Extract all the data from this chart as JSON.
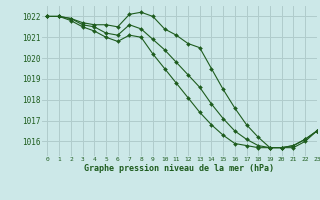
{
  "title": "Graphe pression niveau de la mer (hPa)",
  "background_color": "#cce8e8",
  "grid_color": "#b0cccc",
  "line_color": "#1e5c1e",
  "xlim": [
    -0.5,
    23
  ],
  "ylim": [
    1015.3,
    1022.5
  ],
  "yticks": [
    1016,
    1017,
    1018,
    1019,
    1020,
    1021,
    1022
  ],
  "xticks": [
    0,
    1,
    2,
    3,
    4,
    5,
    6,
    7,
    8,
    9,
    10,
    11,
    12,
    13,
    14,
    15,
    16,
    17,
    18,
    19,
    20,
    21,
    22,
    23
  ],
  "series": [
    [
      1022.0,
      1022.0,
      1021.9,
      1021.7,
      1021.6,
      1021.6,
      1021.5,
      1022.1,
      1022.2,
      1022.0,
      1021.4,
      1021.1,
      1020.7,
      1020.5,
      1019.5,
      1018.5,
      1017.6,
      1016.8,
      1016.2,
      1015.7,
      1015.7,
      1015.7,
      1016.0,
      1016.5
    ],
    [
      1022.0,
      1022.0,
      1021.9,
      1021.6,
      1021.5,
      1021.2,
      1021.1,
      1021.6,
      1021.4,
      1020.9,
      1020.4,
      1019.8,
      1019.2,
      1018.6,
      1017.8,
      1017.1,
      1016.5,
      1016.1,
      1015.8,
      1015.7,
      1015.7,
      1015.8,
      1016.1,
      1016.5
    ],
    [
      1022.0,
      1022.0,
      1021.8,
      1021.5,
      1021.3,
      1021.0,
      1020.8,
      1021.1,
      1021.0,
      1020.2,
      1019.5,
      1018.8,
      1018.1,
      1017.4,
      1016.8,
      1016.3,
      1015.9,
      1015.8,
      1015.7,
      1015.7,
      1015.7,
      1015.8,
      1016.1,
      1016.5
    ]
  ]
}
